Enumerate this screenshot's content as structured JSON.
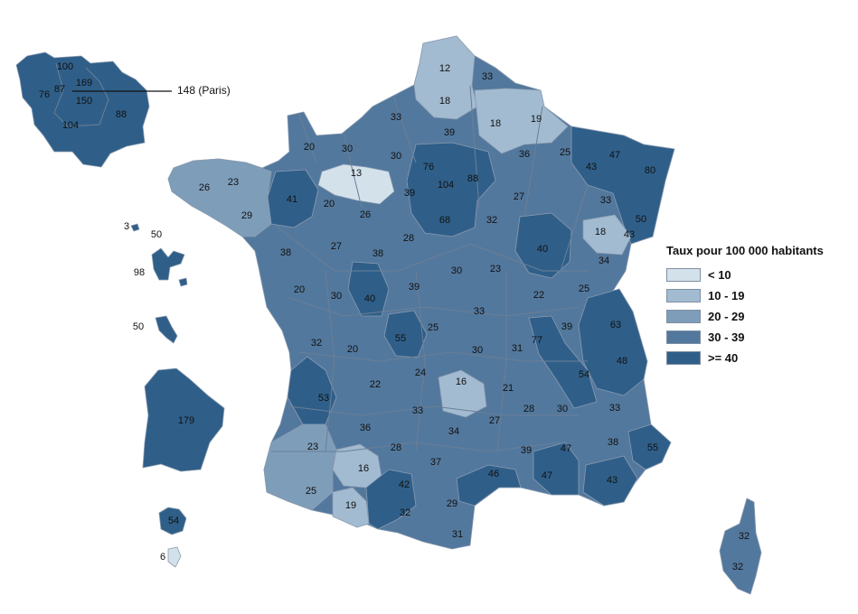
{
  "legend": {
    "title": "Taux pour 100 000 habitants",
    "classes": [
      {
        "label": "< 10",
        "color": "#d3e1eb"
      },
      {
        "label": "10 - 19",
        "color": "#a2bbd1"
      },
      {
        "label": "20 - 29",
        "color": "#7e9db9"
      },
      {
        "label": "30 - 39",
        "color": "#53789d"
      },
      {
        "label": ">= 40",
        "color": "#2f5f89"
      }
    ]
  },
  "paris_callout": "148 (Paris)",
  "values": {
    "idf": [
      "100",
      "169",
      "87",
      "76",
      "150",
      "88",
      "104"
    ],
    "islands": [
      "3",
      "50",
      "98",
      "50",
      "179",
      "54",
      "6"
    ],
    "metro": [
      "12",
      "33",
      "18",
      "18",
      "19",
      "33",
      "39",
      "20",
      "30",
      "30",
      "13",
      "76",
      "104",
      "88",
      "36",
      "25",
      "43",
      "47",
      "80",
      "26",
      "23",
      "41",
      "20",
      "39",
      "27",
      "33",
      "29",
      "26",
      "68",
      "32",
      "50",
      "18",
      "43",
      "38",
      "27",
      "28",
      "40",
      "34",
      "38",
      "30",
      "23",
      "20",
      "30",
      "40",
      "39",
      "22",
      "25",
      "33",
      "39",
      "63",
      "25",
      "32",
      "55",
      "30",
      "31",
      "77",
      "20",
      "24",
      "54",
      "48",
      "16",
      "21",
      "22",
      "33",
      "28",
      "53",
      "27",
      "30",
      "36",
      "34",
      "33",
      "28",
      "38",
      "55",
      "23",
      "16",
      "37",
      "39",
      "47",
      "46",
      "47",
      "42",
      "43",
      "25",
      "29",
      "19",
      "32",
      "31",
      "32",
      "32"
    ]
  }
}
